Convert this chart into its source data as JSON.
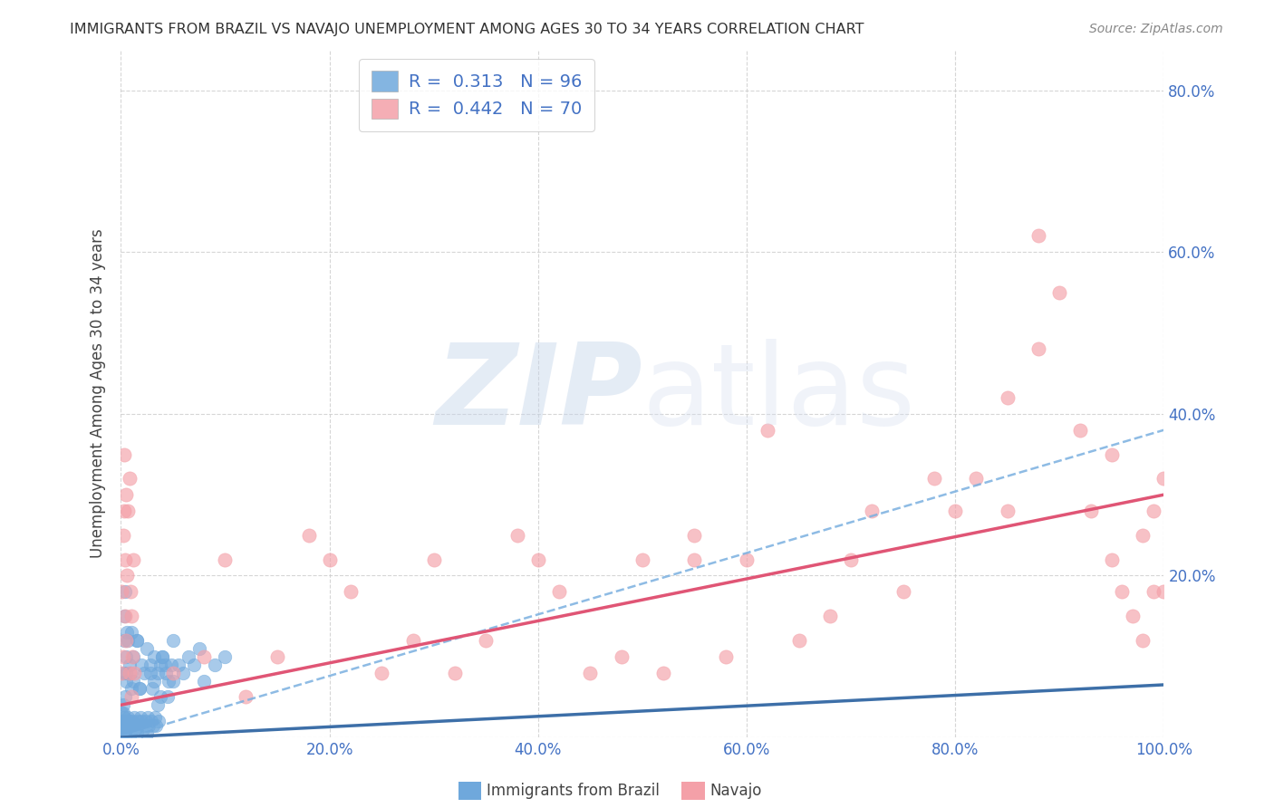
{
  "title": "IMMIGRANTS FROM BRAZIL VS NAVAJO UNEMPLOYMENT AMONG AGES 30 TO 34 YEARS CORRELATION CHART",
  "source": "Source: ZipAtlas.com",
  "ylabel": "Unemployment Among Ages 30 to 34 years",
  "xlim": [
    0.0,
    1.0
  ],
  "ylim": [
    0.0,
    0.85
  ],
  "xticks": [
    0.0,
    0.2,
    0.4,
    0.6,
    0.8,
    1.0
  ],
  "xtick_labels": [
    "0.0%",
    "20.0%",
    "40.0%",
    "60.0%",
    "80.0%",
    "100.0%"
  ],
  "yticks": [
    0.0,
    0.2,
    0.4,
    0.6,
    0.8
  ],
  "ytick_right_labels": [
    "",
    "20.0%",
    "40.0%",
    "60.0%",
    "80.0%"
  ],
  "brazil_color": "#6fa8dc",
  "navajo_color": "#f4a0a8",
  "brazil_R": 0.313,
  "brazil_N": 96,
  "navajo_R": 0.442,
  "navajo_N": 70,
  "brazil_line_color": "#3d6fa8",
  "navajo_line_color": "#e05575",
  "dashed_line_color": "#7ab0e0",
  "axis_label_color": "#4472c4",
  "brazil_x": [
    0.0005,
    0.001,
    0.001,
    0.0015,
    0.002,
    0.002,
    0.002,
    0.003,
    0.003,
    0.003,
    0.004,
    0.004,
    0.004,
    0.005,
    0.005,
    0.005,
    0.006,
    0.006,
    0.007,
    0.007,
    0.008,
    0.008,
    0.009,
    0.009,
    0.01,
    0.01,
    0.011,
    0.012,
    0.012,
    0.013,
    0.014,
    0.015,
    0.015,
    0.016,
    0.017,
    0.018,
    0.019,
    0.02,
    0.021,
    0.022,
    0.023,
    0.024,
    0.025,
    0.026,
    0.027,
    0.028,
    0.029,
    0.03,
    0.031,
    0.032,
    0.033,
    0.034,
    0.035,
    0.036,
    0.038,
    0.04,
    0.042,
    0.045,
    0.048,
    0.05,
    0.0005,
    0.001,
    0.0015,
    0.002,
    0.002,
    0.003,
    0.003,
    0.004,
    0.005,
    0.005,
    0.006,
    0.007,
    0.008,
    0.009,
    0.01,
    0.012,
    0.015,
    0.018,
    0.02,
    0.025,
    0.028,
    0.032,
    0.035,
    0.038,
    0.04,
    0.043,
    0.046,
    0.05,
    0.055,
    0.06,
    0.065,
    0.07,
    0.075,
    0.08,
    0.09,
    0.1
  ],
  "brazil_y": [
    0.005,
    0.01,
    0.02,
    0.005,
    0.01,
    0.015,
    0.03,
    0.005,
    0.015,
    0.025,
    0.01,
    0.02,
    0.05,
    0.005,
    0.015,
    0.08,
    0.01,
    0.02,
    0.015,
    0.025,
    0.01,
    0.02,
    0.005,
    0.015,
    0.01,
    0.06,
    0.02,
    0.015,
    0.07,
    0.025,
    0.01,
    0.005,
    0.12,
    0.02,
    0.015,
    0.06,
    0.025,
    0.02,
    0.01,
    0.08,
    0.015,
    0.02,
    0.005,
    0.025,
    0.015,
    0.09,
    0.02,
    0.06,
    0.015,
    0.07,
    0.025,
    0.015,
    0.08,
    0.02,
    0.05,
    0.1,
    0.09,
    0.05,
    0.09,
    0.07,
    0.005,
    0.03,
    0.01,
    0.04,
    0.08,
    0.12,
    0.15,
    0.18,
    0.07,
    0.1,
    0.13,
    0.12,
    0.09,
    0.08,
    0.13,
    0.1,
    0.12,
    0.06,
    0.09,
    0.11,
    0.08,
    0.1,
    0.04,
    0.09,
    0.1,
    0.08,
    0.07,
    0.12,
    0.09,
    0.08,
    0.1,
    0.09,
    0.11,
    0.07,
    0.09,
    0.1
  ],
  "navajo_x": [
    0.001,
    0.001,
    0.002,
    0.002,
    0.003,
    0.003,
    0.004,
    0.004,
    0.005,
    0.005,
    0.006,
    0.007,
    0.008,
    0.008,
    0.009,
    0.01,
    0.01,
    0.011,
    0.012,
    0.013,
    0.05,
    0.08,
    0.1,
    0.12,
    0.15,
    0.18,
    0.2,
    0.22,
    0.25,
    0.28,
    0.3,
    0.32,
    0.35,
    0.38,
    0.4,
    0.42,
    0.45,
    0.48,
    0.5,
    0.52,
    0.55,
    0.55,
    0.58,
    0.6,
    0.62,
    0.65,
    0.68,
    0.7,
    0.72,
    0.75,
    0.78,
    0.8,
    0.82,
    0.85,
    0.85,
    0.88,
    0.88,
    0.9,
    0.92,
    0.93,
    0.95,
    0.95,
    0.96,
    0.97,
    0.98,
    0.98,
    0.99,
    0.99,
    1.0,
    1.0
  ],
  "navajo_y": [
    0.08,
    0.18,
    0.25,
    0.1,
    0.28,
    0.35,
    0.22,
    0.15,
    0.12,
    0.3,
    0.2,
    0.28,
    0.08,
    0.32,
    0.18,
    0.05,
    0.15,
    0.1,
    0.22,
    0.08,
    0.08,
    0.1,
    0.22,
    0.05,
    0.1,
    0.25,
    0.22,
    0.18,
    0.08,
    0.12,
    0.22,
    0.08,
    0.12,
    0.25,
    0.22,
    0.18,
    0.08,
    0.1,
    0.22,
    0.08,
    0.22,
    0.25,
    0.1,
    0.22,
    0.38,
    0.12,
    0.15,
    0.22,
    0.28,
    0.18,
    0.32,
    0.28,
    0.32,
    0.42,
    0.28,
    0.48,
    0.62,
    0.55,
    0.38,
    0.28,
    0.35,
    0.22,
    0.18,
    0.15,
    0.12,
    0.25,
    0.28,
    0.18,
    0.32,
    0.18
  ],
  "brazil_line": [
    0.0,
    0.0,
    1.0,
    0.065
  ],
  "navajo_line": [
    0.0,
    0.04,
    1.0,
    0.3
  ],
  "dashed_line": [
    0.0,
    0.0,
    1.0,
    0.38
  ]
}
